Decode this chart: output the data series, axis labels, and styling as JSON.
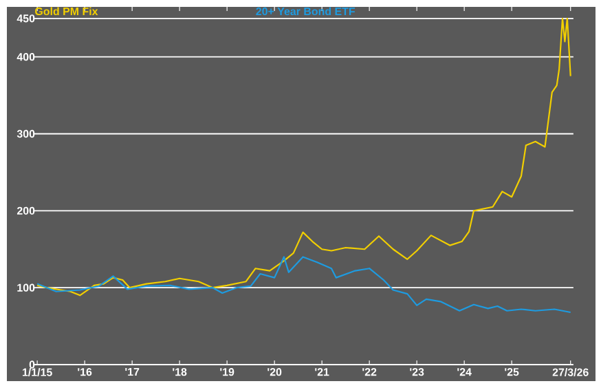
{
  "chart_data": {
    "type": "line",
    "series": [
      {
        "name": "Gold PM Fix",
        "color": "#f2cf00",
        "x": [
          2015.0,
          2015.2,
          2015.5,
          2015.7,
          2015.9,
          2016.2,
          2016.4,
          2016.6,
          2016.8,
          2016.95,
          2017.3,
          2017.7,
          2018.0,
          2018.4,
          2018.7,
          2019.0,
          2019.4,
          2019.6,
          2019.9,
          2020.2,
          2020.4,
          2020.6,
          2020.8,
          2021.0,
          2021.2,
          2021.5,
          2021.9,
          2022.2,
          2022.5,
          2022.8,
          2023.0,
          2023.3,
          2023.7,
          2023.95,
          2024.1,
          2024.2,
          2024.6,
          2024.8,
          2025.0,
          2025.2,
          2025.3,
          2025.5,
          2025.7,
          2025.85,
          2025.95,
          2026.0,
          2026.07,
          2026.12,
          2026.17,
          2026.24
        ],
        "values": [
          103,
          100,
          97,
          95,
          90,
          103,
          105,
          113,
          110,
          100,
          105,
          108,
          112,
          108,
          100,
          103,
          108,
          125,
          122,
          135,
          145,
          172,
          160,
          150,
          148,
          152,
          150,
          167,
          150,
          137,
          148,
          168,
          155,
          160,
          173,
          200,
          205,
          225,
          218,
          245,
          285,
          290,
          283,
          354,
          363,
          384,
          450,
          420,
          450,
          375
        ]
      },
      {
        "name": "20+ Year Bond ETF",
        "color": "#1e9be0",
        "x": [
          2015.0,
          2015.4,
          2015.9,
          2016.3,
          2016.6,
          2016.9,
          2017.3,
          2017.8,
          2018.2,
          2018.7,
          2018.9,
          2019.2,
          2019.5,
          2019.7,
          2020.0,
          2020.2,
          2020.3,
          2020.6,
          2020.9,
          2021.2,
          2021.3,
          2021.7,
          2022.0,
          2022.3,
          2022.5,
          2022.8,
          2023.0,
          2023.2,
          2023.5,
          2023.9,
          2024.2,
          2024.5,
          2024.7,
          2024.9,
          2025.2,
          2025.5,
          2025.9,
          2026.24
        ],
        "values": [
          105,
          95,
          97,
          102,
          115,
          98,
          102,
          103,
          98,
          100,
          93,
          100,
          102,
          118,
          113,
          140,
          120,
          140,
          133,
          125,
          113,
          122,
          125,
          110,
          97,
          92,
          77,
          85,
          82,
          70,
          78,
          73,
          76,
          70,
          72,
          70,
          72,
          68
        ]
      }
    ],
    "xlim": [
      2014.94,
      2026.3
    ],
    "xticks": [
      {
        "value": 2015,
        "label": "1/1/15"
      },
      {
        "value": 2016,
        "label": "'16"
      },
      {
        "value": 2017,
        "label": "'17"
      },
      {
        "value": 2018,
        "label": "'18"
      },
      {
        "value": 2019,
        "label": "'19"
      },
      {
        "value": 2020,
        "label": "'20"
      },
      {
        "value": 2021,
        "label": "'21"
      },
      {
        "value": 2022,
        "label": "'22"
      },
      {
        "value": 2023,
        "label": "'23"
      },
      {
        "value": 2024,
        "label": "'24"
      },
      {
        "value": 2025,
        "label": "'25"
      },
      {
        "value": 2026.24,
        "label": "27/3/26"
      }
    ],
    "ylim": [
      0,
      465
    ],
    "yticks": [
      0,
      100,
      200,
      300,
      400,
      450
    ],
    "grid": "y",
    "legend": "top",
    "marker": "none",
    "line_style": "solid"
  }
}
